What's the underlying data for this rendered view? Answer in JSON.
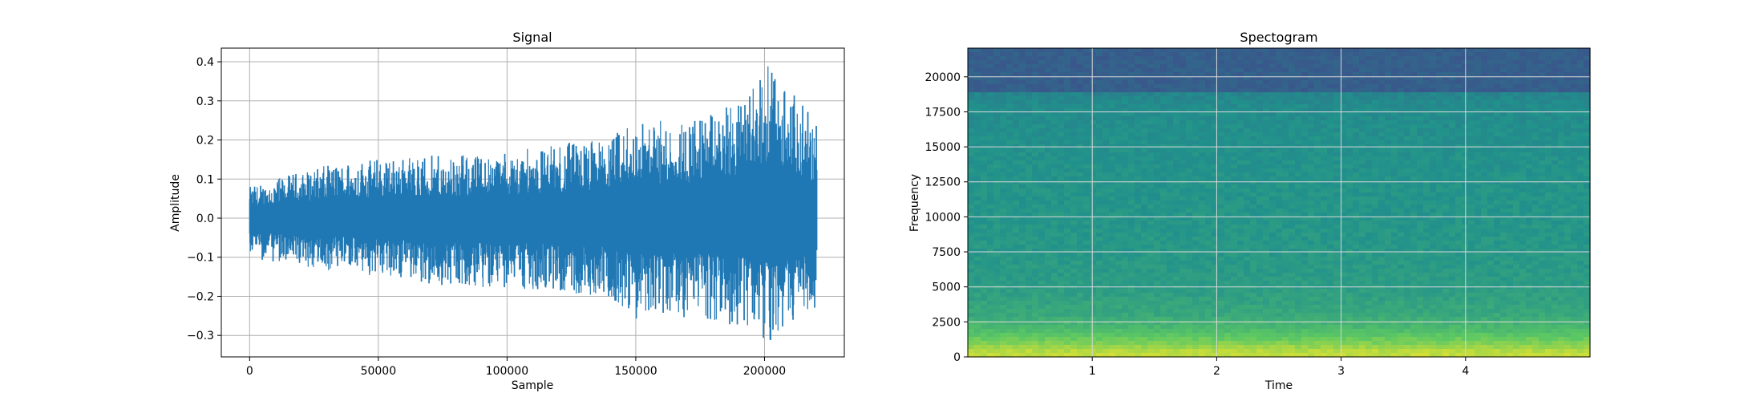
{
  "chart_data": [
    {
      "type": "line",
      "title": "Signal",
      "xlabel": "Sample",
      "ylabel": "Amplitude",
      "xlim": [
        -11000,
        231000
      ],
      "ylim": [
        -0.355,
        0.435
      ],
      "grid": true,
      "color": "#1f77b4",
      "x_ticks": [
        0,
        50000,
        100000,
        150000,
        200000
      ],
      "x_tick_labels": [
        "0",
        "50000",
        "100000",
        "150000",
        "200000"
      ],
      "y_ticks": [
        -0.3,
        -0.2,
        -0.1,
        0.0,
        0.1,
        0.2,
        0.3,
        0.4
      ],
      "y_tick_labels": [
        "−0.3",
        "−0.2",
        "−0.1",
        "0.0",
        "0.1",
        "0.2",
        "0.3",
        "0.4"
      ],
      "x_range": [
        0,
        220500
      ],
      "envelope": {
        "x": [
          0,
          20000,
          40000,
          60000,
          80000,
          100000,
          120000,
          140000,
          150000,
          160000,
          180000,
          190000,
          200000,
          210000,
          220500
        ],
        "upper": [
          0.08,
          0.12,
          0.15,
          0.16,
          0.16,
          0.17,
          0.19,
          0.21,
          0.25,
          0.25,
          0.27,
          0.3,
          0.4,
          0.33,
          0.24
        ],
        "lower": [
          -0.1,
          -0.13,
          -0.14,
          -0.16,
          -0.18,
          -0.18,
          -0.19,
          -0.21,
          -0.26,
          -0.25,
          -0.26,
          -0.28,
          -0.32,
          -0.3,
          -0.23
        ]
      }
    },
    {
      "type": "heatmap",
      "title": "Spectogram",
      "xlabel": "Time",
      "ylabel": "Frequency",
      "xlim": [
        0,
        5.0
      ],
      "ylim": [
        0,
        22050
      ],
      "grid": true,
      "colormap": "viridis",
      "x_ticks": [
        1,
        2,
        3,
        4
      ],
      "x_tick_labels": [
        "1",
        "2",
        "3",
        "4"
      ],
      "y_ticks": [
        0,
        2500,
        5000,
        7500,
        10000,
        12500,
        15000,
        17500,
        20000
      ],
      "y_tick_labels": [
        "0",
        "2500",
        "5000",
        "7500",
        "10000",
        "12500",
        "15000",
        "17500",
        "20000"
      ],
      "intensity_profile": {
        "frequency": [
          0,
          500,
          1000,
          2000,
          3000,
          5000,
          7500,
          10000,
          15000,
          18000,
          18800,
          19000,
          22050
        ],
        "level": [
          0.92,
          0.88,
          0.8,
          0.68,
          0.6,
          0.55,
          0.53,
          0.52,
          0.5,
          0.48,
          0.45,
          0.3,
          0.3
        ]
      }
    }
  ]
}
